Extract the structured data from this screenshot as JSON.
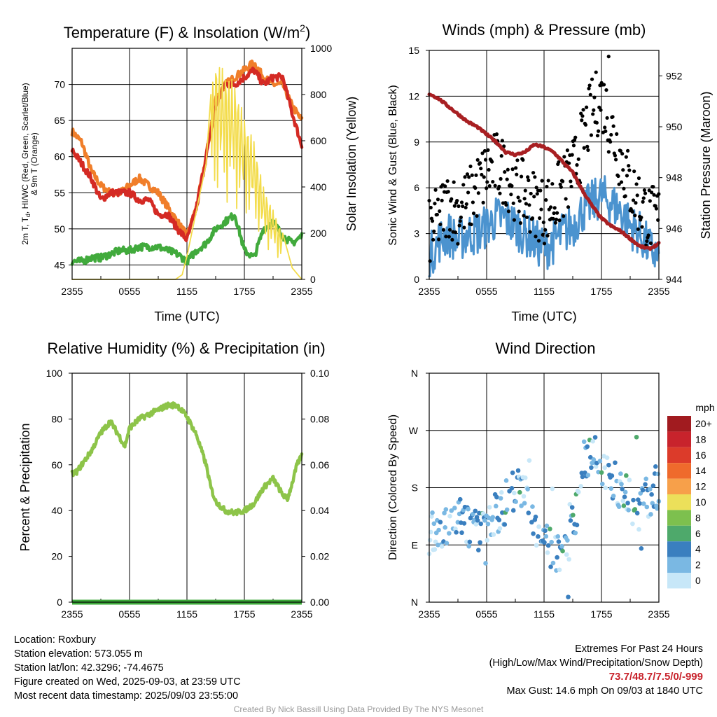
{
  "chart_data": [
    {
      "type": "line",
      "title_main": "Temperature (F) & Insolation (W/m",
      "title_sup": "2",
      "title_end": ")",
      "xlabel": "Time (UTC)",
      "ylabel_lines": [
        "2m T, T",
        "d",
        ", HI/WC (Red, Green, Scarlet/Blue)",
        "& 9m T (Orange)"
      ],
      "y2label": "Solar Insolation (Yellow)",
      "x_ticks": [
        "2355",
        "0555",
        "1155",
        "1755",
        "2355"
      ],
      "ylim": [
        43,
        75
      ],
      "y_ticks": [
        45,
        50,
        55,
        60,
        65,
        70
      ],
      "y2lim": [
        0,
        1000
      ],
      "y2_ticks": [
        0,
        200,
        400,
        600,
        800,
        1000
      ],
      "grid": true,
      "series": [
        {
          "color": "#f07e2a",
          "values_hours": [
            0,
            1,
            2,
            3,
            4,
            5,
            6,
            7,
            8,
            9,
            10,
            11,
            12,
            13,
            14,
            15,
            16,
            17,
            18,
            19,
            20,
            21,
            22,
            23,
            24
          ],
          "values": [
            63.5,
            62,
            58,
            56,
            55,
            55,
            56,
            57,
            56,
            55,
            53,
            51,
            49,
            53,
            60,
            68,
            70,
            71,
            72,
            73,
            71,
            70,
            70,
            67,
            65
          ]
        },
        {
          "color": "#d42a24",
          "values_hours": [
            0,
            1,
            2,
            3,
            4,
            5,
            6,
            7,
            8,
            9,
            10,
            11,
            12,
            13,
            14,
            15,
            16,
            17,
            18,
            19,
            20,
            21,
            22,
            23,
            24
          ],
          "values": [
            61,
            59,
            57,
            54,
            55,
            55,
            55,
            54,
            54,
            52,
            52,
            50,
            48.5,
            53,
            60,
            67,
            70,
            70,
            71,
            72,
            70,
            71,
            71,
            66,
            61.5
          ]
        },
        {
          "color": "#41aa3c",
          "values_hours": [
            0,
            1,
            2,
            3,
            4,
            5,
            6,
            7,
            8,
            9,
            10,
            11,
            12,
            13,
            14,
            15,
            16,
            17,
            18,
            19,
            20,
            21,
            22,
            23,
            24
          ],
          "values": [
            45.5,
            45.5,
            46,
            46,
            46.5,
            47,
            47,
            47.5,
            47.5,
            47.5,
            47,
            46.5,
            45.5,
            47,
            48,
            50,
            51,
            52,
            47,
            46,
            50,
            51,
            49,
            48,
            49
          ]
        },
        {
          "color": "#f3dc4b",
          "name_y2": true,
          "values_hours": [
            0,
            10.8,
            11.5,
            12,
            13,
            14,
            14.5,
            15,
            16,
            17,
            18,
            19,
            20,
            21,
            22,
            23,
            24
          ],
          "values": [
            0,
            0,
            20,
            100,
            300,
            500,
            800,
            950,
            900,
            850,
            700,
            600,
            400,
            300,
            200,
            50,
            0
          ]
        }
      ]
    },
    {
      "type": "scatter",
      "title": "Winds (mph) & Pressure (mb)",
      "xlabel": "Time (UTC)",
      "ylabel": "Sonic Wind & Gust (Blue, Black)",
      "y2label": "Station Pressure (Maroon)",
      "x_ticks": [
        "2355",
        "0555",
        "1155",
        "1755",
        "2355"
      ],
      "ylim": [
        0,
        15
      ],
      "y_ticks": [
        0,
        3,
        6,
        9,
        12,
        15
      ],
      "y2lim": [
        944,
        953
      ],
      "y2_ticks": [
        944,
        946,
        948,
        950,
        952
      ],
      "wind_hours": [
        0,
        1,
        2,
        3,
        4,
        5,
        6,
        7,
        8,
        9,
        10,
        11,
        12,
        13,
        14,
        15,
        16,
        17,
        18,
        19,
        20,
        21,
        22,
        23,
        24
      ],
      "wind_values": [
        1.5,
        2.5,
        3,
        2.5,
        3,
        3,
        3.5,
        4,
        4,
        3.5,
        3,
        2.5,
        2,
        2.5,
        3,
        3.5,
        4.5,
        5,
        5.5,
        5,
        4.5,
        3.5,
        3,
        2,
        1.5
      ],
      "gust_hours": [
        0,
        1,
        2,
        3,
        4,
        5,
        6,
        7,
        8,
        9,
        10,
        11,
        12,
        13,
        14,
        15,
        16,
        17,
        18,
        19,
        20,
        21,
        22,
        23,
        24
      ],
      "gust_values": [
        3,
        4,
        5,
        4.5,
        5,
        6,
        7,
        7.5,
        7,
        6,
        5.5,
        5,
        4.5,
        5,
        6,
        7,
        9,
        11,
        12,
        10,
        8,
        6,
        5,
        4,
        4
      ],
      "max_gust": {
        "hour": 18.75,
        "value": 14.6
      },
      "pressure_hours": [
        0,
        1,
        2,
        3,
        4,
        5,
        6,
        7,
        8,
        9,
        10,
        11,
        12,
        13,
        14,
        15,
        16,
        17,
        18,
        19,
        20,
        21,
        22,
        23,
        24
      ],
      "pressure_values": [
        951.3,
        951.1,
        950.8,
        950.5,
        950.2,
        950,
        949.7,
        949.4,
        949,
        948.9,
        949,
        949.3,
        949.2,
        949,
        948.6,
        948.2,
        947.5,
        946.9,
        946.4,
        946.1,
        945.9,
        945.6,
        945.3,
        945.2,
        945.4
      ]
    },
    {
      "type": "line",
      "title": "Relative Humidity (%) & Precipitation (in)",
      "ylabel": "Percent & Precipitation",
      "x_ticks": [
        "2355",
        "0555",
        "1155",
        "1755",
        "2355"
      ],
      "ylim": [
        0,
        100
      ],
      "y_ticks": [
        0,
        20,
        40,
        60,
        80,
        100
      ],
      "y2lim": [
        0,
        0.1
      ],
      "y2_ticks": [
        "0.00",
        "0.02",
        "0.04",
        "0.06",
        "0.08",
        "0.10"
      ],
      "grid": true,
      "rh_hours": [
        0,
        0.5,
        1,
        2,
        3,
        4,
        5,
        5.5,
        6,
        7,
        8,
        9,
        10,
        11,
        12,
        13,
        14,
        14.5,
        15,
        16,
        17,
        18,
        19,
        20,
        21,
        22,
        22.5,
        23,
        23.5,
        24
      ],
      "rh_values": [
        56,
        57,
        60,
        66,
        74,
        79,
        72,
        68,
        76,
        80,
        82,
        84,
        86,
        86,
        81,
        73,
        60,
        50,
        44,
        40,
        39,
        40,
        43,
        50,
        54,
        47,
        45,
        52,
        60,
        64
      ],
      "precip_hours": [
        0,
        24
      ],
      "precip_values": [
        0,
        0
      ]
    },
    {
      "type": "scatter",
      "title": "Wind Direction",
      "ylabel": "Direction (Colored By Speed)",
      "x_ticks": [
        "2355",
        "0555",
        "1155",
        "1755",
        "2355"
      ],
      "y_ticks": [
        "N",
        "E",
        "S",
        "W",
        "N"
      ],
      "ylim": [
        0,
        360
      ],
      "legend_title": "mph",
      "legend_labels": [
        "20+",
        "18",
        "16",
        "14",
        "12",
        "10",
        "8",
        "6",
        "4",
        "2",
        "0"
      ],
      "legend_colors": [
        "#a11b1f",
        "#c8232c",
        "#dc3b2a",
        "#ef6a2c",
        "#f7a04a",
        "#ece05a",
        "#7dc04e",
        "#4ea96b",
        "#3a7fbf",
        "#7ab8e3",
        "#c7e7f8"
      ],
      "dir_hours": [
        0,
        1,
        2,
        3,
        4,
        5,
        6,
        7,
        8,
        9,
        10,
        11,
        12,
        13,
        14,
        15,
        16,
        17,
        18,
        19,
        20,
        21,
        22,
        23,
        24
      ],
      "dir_values": [
        105,
        110,
        125,
        140,
        120,
        115,
        125,
        140,
        155,
        180,
        165,
        130,
        100,
        80,
        70,
        120,
        200,
        240,
        220,
        200,
        180,
        160,
        140,
        170,
        190
      ]
    }
  ],
  "info_left": {
    "location": "Location: Roxbury",
    "elevation": "Station elevation: 573.055 m",
    "latlon": "Station lat/lon: 42.3296; -74.4675",
    "created": "Figure created on Wed, 2025-09-03, at 23:59 UTC",
    "recent": "Most recent data timestamp: 2025/09/03 23:55:00"
  },
  "info_right": {
    "line1": "Extremes For Past 24 Hours",
    "line2": "(High/Low/Max Wind/Precipitation/Snow Depth)",
    "extremes": "73.7/48.7/7.5/0/-999",
    "gust": "Max Gust: 14.6 mph On 09/03 at 1840 UTC"
  },
  "credit": "Created By Nick Bassill Using Data Provided By The NYS Mesonet"
}
